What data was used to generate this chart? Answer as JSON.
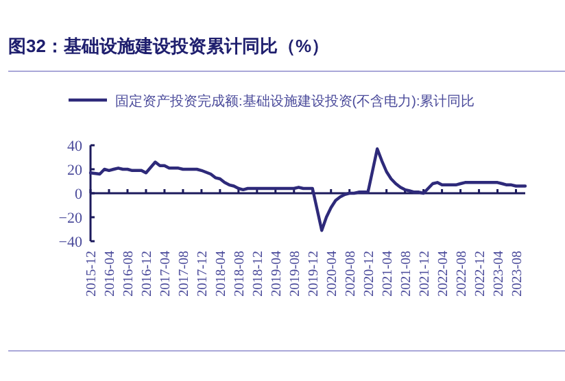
{
  "chart_data": {
    "type": "line",
    "title": "图32：基础设施建设投资累计同比（%）",
    "legend": "top",
    "x": [
      "2015-12",
      "2016-02",
      "2016-03",
      "2016-04",
      "2016-05",
      "2016-06",
      "2016-07",
      "2016-08",
      "2016-09",
      "2016-10",
      "2016-11",
      "2016-12",
      "2017-02",
      "2017-03",
      "2017-04",
      "2017-05",
      "2017-06",
      "2017-07",
      "2017-08",
      "2017-09",
      "2017-10",
      "2017-11",
      "2017-12",
      "2018-02",
      "2018-03",
      "2018-04",
      "2018-05",
      "2018-06",
      "2018-07",
      "2018-08",
      "2018-09",
      "2018-10",
      "2018-11",
      "2018-12",
      "2019-02",
      "2019-03",
      "2019-04",
      "2019-05",
      "2019-06",
      "2019-07",
      "2019-08",
      "2019-09",
      "2019-10",
      "2019-11",
      "2019-12",
      "2020-02",
      "2020-03",
      "2020-04",
      "2020-05",
      "2020-06",
      "2020-07",
      "2020-08",
      "2020-09",
      "2020-10",
      "2020-11",
      "2020-12",
      "2021-02",
      "2021-03",
      "2021-04",
      "2021-05",
      "2021-06",
      "2021-07",
      "2021-08",
      "2021-09",
      "2021-10",
      "2021-11",
      "2021-12",
      "2022-02",
      "2022-03",
      "2022-04",
      "2022-05",
      "2022-06",
      "2022-07",
      "2022-08",
      "2022-09",
      "2022-10",
      "2022-11",
      "2022-12",
      "2023-02",
      "2023-03",
      "2023-04",
      "2023-05",
      "2023-06",
      "2023-07",
      "2023-08",
      "2023-09",
      "2023-10"
    ],
    "series": [
      {
        "name": "固定资产投资完成额:基础设施建设投资(不含电力):累计同比",
        "color": "#2e2a7a",
        "values": [
          17,
          16,
          20,
          19,
          20,
          21,
          20,
          20,
          19,
          19,
          19,
          17,
          26,
          23,
          23,
          21,
          21,
          21,
          20,
          20,
          20,
          20,
          19,
          16,
          13,
          12,
          9,
          7,
          6,
          4,
          3,
          4,
          4,
          4,
          4,
          4,
          4,
          4,
          4,
          4,
          4,
          5,
          4,
          4,
          4,
          -31,
          -20,
          -12,
          -6,
          -3,
          -1,
          0,
          0,
          1,
          1,
          1,
          37,
          27,
          18,
          12,
          8,
          5,
          3,
          2,
          1,
          1,
          0,
          8,
          9,
          7,
          7,
          7,
          7,
          8,
          9,
          9,
          9,
          9,
          9,
          9,
          9,
          8,
          7,
          7,
          6,
          6,
          6
        ]
      }
    ],
    "xlim": [
      "2015-12",
      "2023-10"
    ],
    "xticks": [
      "2015-12",
      "2016-04",
      "2016-08",
      "2016-12",
      "2017-04",
      "2017-08",
      "2017-12",
      "2018-04",
      "2018-08",
      "2018-12",
      "2019-04",
      "2019-08",
      "2019-12",
      "2020-04",
      "2020-08",
      "2020-12",
      "2021-04",
      "2021-08",
      "2021-12",
      "2022-04",
      "2022-08",
      "2022-12",
      "2023-04",
      "2023-08"
    ],
    "ylim": [
      -40,
      40
    ],
    "yticks": [
      -40,
      -20,
      0,
      20,
      40
    ],
    "grid": false
  }
}
